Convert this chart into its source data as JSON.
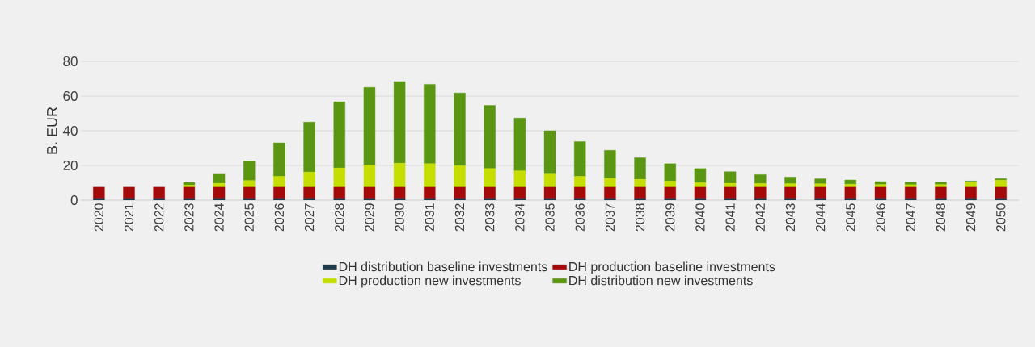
{
  "chart_data": {
    "type": "bar",
    "stacked": true,
    "ylabel": "B. EUR",
    "categories": [
      "2020",
      "2021",
      "2022",
      "2023",
      "2024",
      "2025",
      "2026",
      "2027",
      "2028",
      "2029",
      "2030",
      "2031",
      "2032",
      "2033",
      "2034",
      "2035",
      "2036",
      "2037",
      "2038",
      "2039",
      "2040",
      "2041",
      "2042",
      "2043",
      "2044",
      "2045",
      "2046",
      "2047",
      "2048",
      "2049",
      "2050"
    ],
    "series": [
      {
        "name": "DH distribution baseline investments",
        "color": "#1f3a48",
        "values": [
          1,
          1,
          1,
          1,
          1,
          1,
          1,
          1,
          1,
          1,
          1,
          1,
          1,
          1,
          1,
          1,
          1,
          1,
          1,
          1,
          1,
          1,
          1,
          1,
          1,
          1,
          1,
          1,
          1,
          1,
          1
        ]
      },
      {
        "name": "DH production baseline investments",
        "color": "#a50a0a",
        "values": [
          6.5,
          6.5,
          6.5,
          6.5,
          6.5,
          6.5,
          6.5,
          6.5,
          6.5,
          6.5,
          6.5,
          6.5,
          6.5,
          6.5,
          6.5,
          6.5,
          6.5,
          6.5,
          6.5,
          6.5,
          6.5,
          6.5,
          6.5,
          6.5,
          6.5,
          6.5,
          6.5,
          6.5,
          6.5,
          6.5,
          6.5
        ]
      },
      {
        "name": "DH production new investments",
        "color": "#c5de00",
        "values": [
          0,
          0,
          0,
          1.2,
          2.2,
          3.8,
          6.2,
          8.7,
          11,
          12.7,
          13.8,
          13.5,
          12.3,
          10.7,
          9.4,
          7.5,
          6.2,
          5.1,
          4.5,
          3.5,
          2.5,
          2.2,
          2.1,
          2,
          1.9,
          1.7,
          1.5,
          1.4,
          1.5,
          2.8,
          4
        ]
      },
      {
        "name": "DH distribution new investments",
        "color": "#5b9612",
        "values": [
          0,
          0,
          0,
          1.5,
          5.2,
          11.2,
          19.3,
          28.8,
          38.2,
          44.8,
          47.1,
          45.8,
          42,
          36.4,
          30.4,
          25,
          20,
          16.1,
          12.4,
          10,
          8.2,
          6.7,
          5.1,
          3.8,
          2.9,
          2.4,
          1.7,
          1.5,
          1.4,
          0.7,
          0.9
        ]
      }
    ],
    "ylim": [
      0,
      80
    ],
    "yticks": [
      0,
      20,
      40,
      60,
      80
    ],
    "grid": "y",
    "legend": "bottom"
  }
}
